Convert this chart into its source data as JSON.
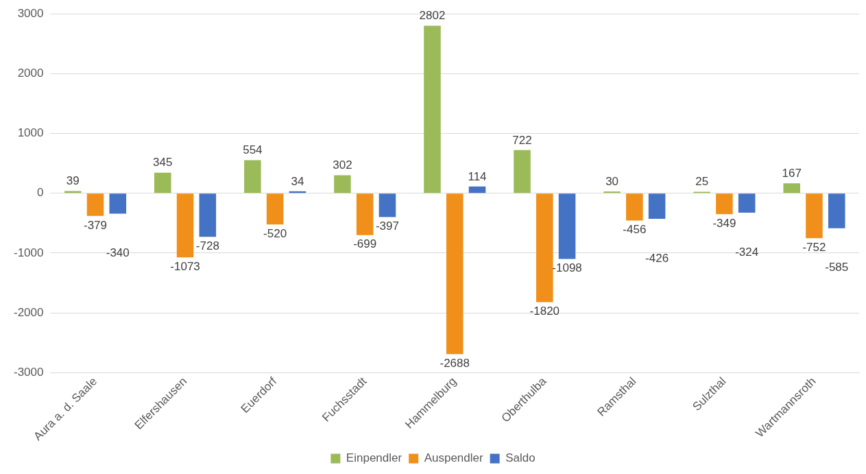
{
  "chart_data": {
    "type": "bar",
    "categories": [
      "Aura a. d. Saale",
      "Elfershausen",
      "Euerdorf",
      "Fuchsstadt",
      "Hammelburg",
      "Oberthulba",
      "Ramsthal",
      "Sulzthal",
      "Wartmannsroth"
    ],
    "series": [
      {
        "name": "Einpendler",
        "color": "#9bbb59",
        "values": [
          39,
          345,
          554,
          302,
          2802,
          722,
          30,
          25,
          167
        ]
      },
      {
        "name": "Auspendler",
        "color": "#f0901a",
        "values": [
          -379,
          -1073,
          -520,
          -699,
          -2688,
          -1820,
          -456,
          -349,
          -752
        ]
      },
      {
        "name": "Saldo",
        "color": "#4472c4",
        "values": [
          -340,
          -728,
          34,
          -397,
          114,
          -1098,
          -426,
          -324,
          -585
        ]
      }
    ],
    "ylim": [
      -3000,
      3000
    ],
    "yticks": [
      -3000,
      -2000,
      -1000,
      0,
      1000,
      2000,
      3000
    ],
    "grid": "y",
    "legend": "bottom",
    "data_labels": true
  }
}
